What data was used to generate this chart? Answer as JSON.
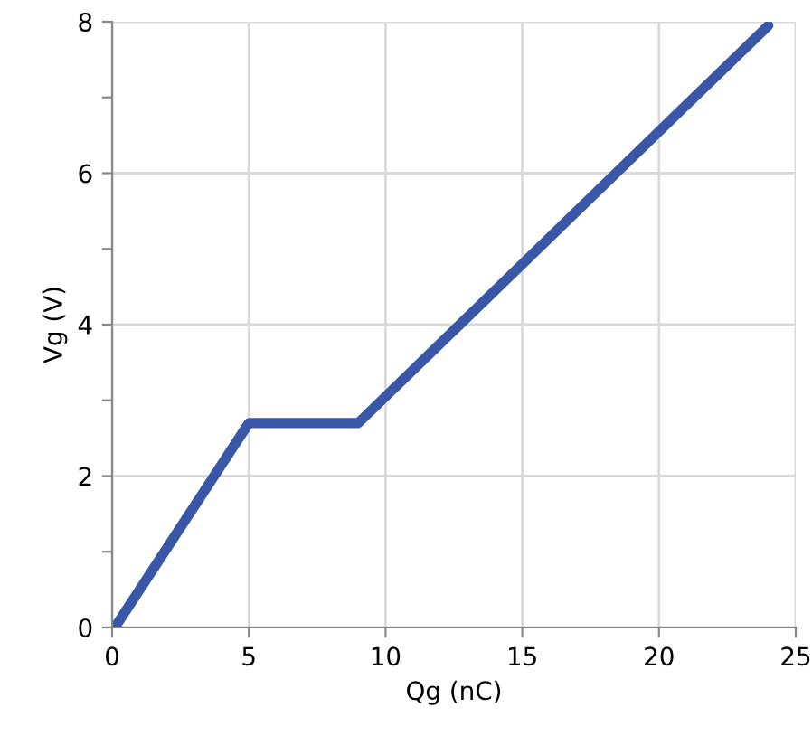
{
  "chart_data": {
    "type": "line",
    "xlabel": "Qg (nC)",
    "ylabel": "Vg (V)",
    "x": [
      0.1,
      5,
      9,
      24
    ],
    "series": [
      {
        "color": "#3a56a6",
        "values": [
          0,
          2.7,
          2.7,
          7.95
        ]
      }
    ],
    "xlim": [
      0,
      25
    ],
    "xticks": [
      0,
      5,
      10,
      15,
      20,
      25
    ],
    "ylim": [
      0,
      8
    ],
    "yticks": [
      0,
      {
        "value": 1,
        "label": null
      },
      2,
      {
        "value": 3,
        "label": null
      },
      4,
      {
        "value": 5,
        "label": null
      },
      6,
      {
        "value": 7,
        "label": null
      },
      8
    ],
    "grid": true,
    "marker": "none",
    "line_style": "solid"
  }
}
